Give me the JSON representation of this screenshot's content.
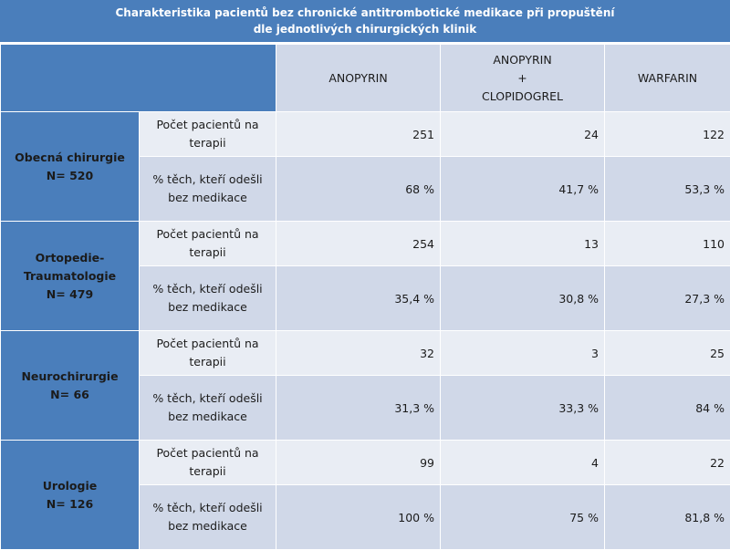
{
  "title": {
    "line1": "Charakteristika pacientů bez chronické antitrombotické medikace při propuštění",
    "line2": "dle jednotlivých chirurgických klinik"
  },
  "columns": {
    "anopyrin": "ANOPYRIN",
    "combo_line1": "ANOPYRIN",
    "combo_line2": "+",
    "combo_line3": "CLOPIDOGREL",
    "warfarin": "WARFARIN"
  },
  "row_labels": {
    "count_line1": "Počet pacientů na",
    "count_line2": "terapii",
    "pct_line1": "% těch, kteří odešli",
    "pct_line2": "bez medikace"
  },
  "groups": [
    {
      "name_line1": "Obecná chirurgie",
      "name_line2": "N= 520",
      "name_line3": "",
      "count": [
        "251",
        "24",
        "122"
      ],
      "pct": [
        "68 %",
        "41,7 %",
        "53,3 %"
      ]
    },
    {
      "name_line1": "Ortopedie-",
      "name_line2": "Traumatologie",
      "name_line3": "N= 479",
      "count": [
        "254",
        "13",
        "110"
      ],
      "pct": [
        "35,4 %",
        "30,8 %",
        "27,3 %"
      ]
    },
    {
      "name_line1": "Neurochirurgie",
      "name_line2": "N= 66",
      "name_line3": "",
      "count": [
        "32",
        "3",
        "25"
      ],
      "pct": [
        "31,3 %",
        "33,3 %",
        "84 %"
      ]
    },
    {
      "name_line1": "Urologie",
      "name_line2": "N= 126",
      "name_line3": "",
      "count": [
        "99",
        "4",
        "22"
      ],
      "pct": [
        "100 %",
        "75 %",
        "81,8 %"
      ]
    }
  ],
  "colors": {
    "header_blue": "#4a7ebb",
    "light_row": "#e9edf4",
    "mid_row": "#d0d8e8"
  }
}
